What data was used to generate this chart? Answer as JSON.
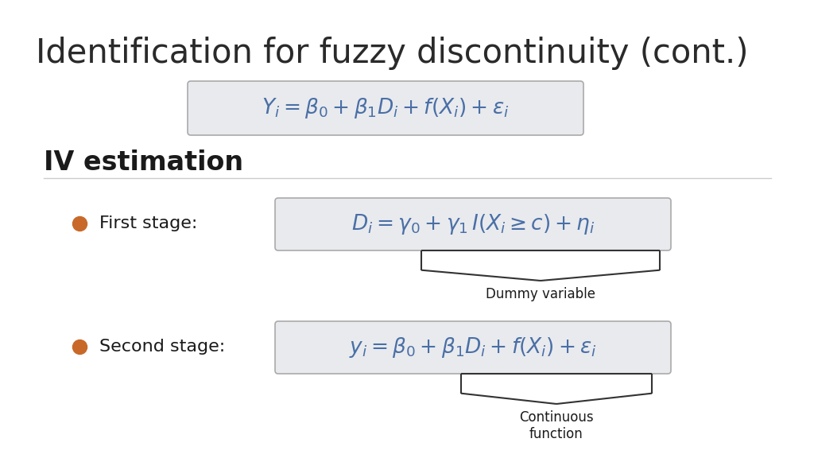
{
  "title": "Identification for fuzzy discontinuity (cont.)",
  "title_fontsize": 30,
  "title_color": "#2a2a2a",
  "bg_color": "#ffffff",
  "eq_main": "$Y_i = \\beta_0 + \\beta_1 D_i + f(X_i) + \\varepsilon_i$",
  "eq_color": "#4a6fa5",
  "iv_label": "IV estimation",
  "iv_label_fontsize": 24,
  "iv_label_color": "#1a1a1a",
  "first_stage_label": "First stage:",
  "second_stage_label": "Second stage:",
  "stage_label_fontsize": 16,
  "stage_label_color": "#1a1a1a",
  "eq_first": "$D_i = \\gamma_0 + \\gamma_1\\, \\mathit{I}(X_i \\geq c) + \\eta_i$",
  "eq_second": "$y_i = \\beta_0 + \\beta_1 D_i + f(X_i) + \\varepsilon_i$",
  "eq_fontsize": 19,
  "dummy_label": "Dummy variable",
  "continuous_label": "Continuous\nfunction",
  "annotation_fontsize": 12,
  "annotation_color": "#1a1a1a",
  "bullet_color": "#c8692a",
  "box_facecolor": "#e8eaee",
  "box_edgecolor": "#aaaaaa",
  "brace_color": "#333333",
  "brace_lw": 1.5,
  "line_color": "#cccccc"
}
